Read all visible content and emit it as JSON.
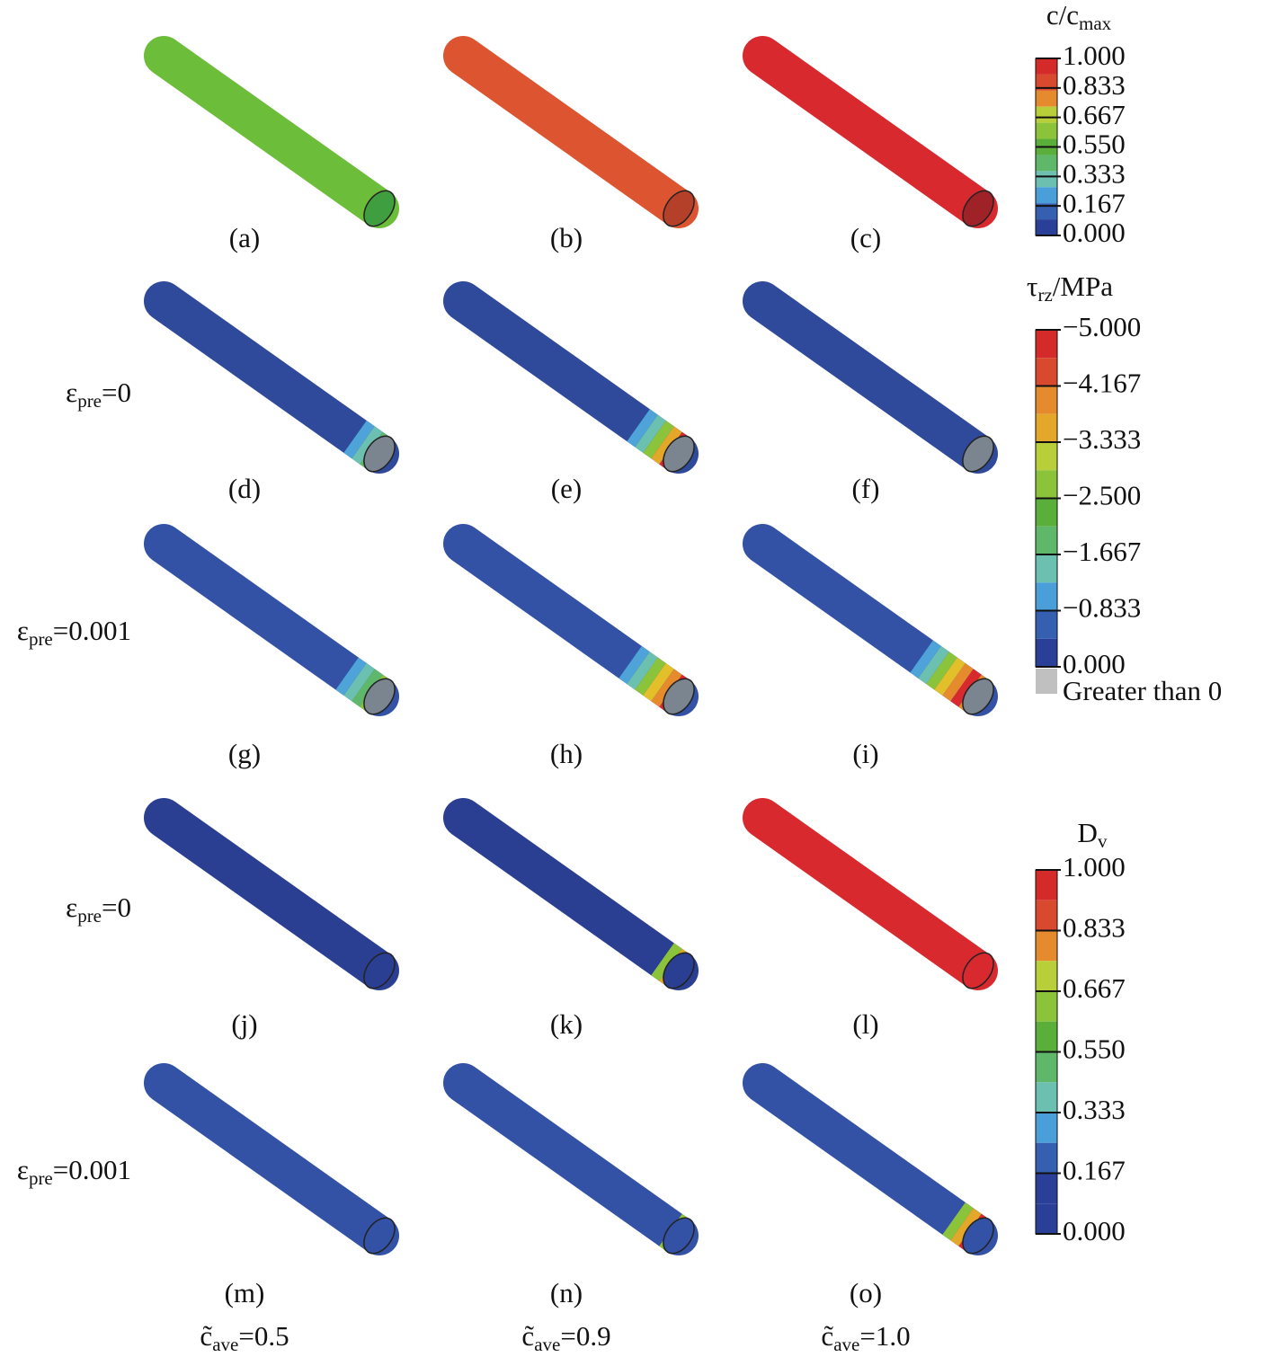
{
  "rows": [
    {
      "panels": [
        {
          "label": "(a)",
          "color": "#6cbd3a",
          "end": "#3f9e3f",
          "bands": []
        },
        {
          "label": "(b)",
          "color": "#dd5530",
          "end": "#b5402a",
          "bands": []
        },
        {
          "label": "(c)",
          "color": "#d82a2e",
          "end": "#9e2228",
          "bands": []
        }
      ]
    },
    {
      "label": [
        {
          "text": "ε"
        },
        {
          "text": "pre",
          "sub": true
        },
        {
          "text": "=0"
        }
      ],
      "panels": [
        {
          "label": "(d)",
          "color": "#2f4a9a",
          "end": "#7a8590",
          "bands": [
            "#4ea3d8",
            "#6cc0b0",
            "#5fb86a"
          ]
        },
        {
          "label": "(e)",
          "color": "#2f4a9a",
          "end": "#7a8590",
          "bands": [
            "#4ea3d8",
            "#6cc0b0",
            "#8bc43a",
            "#e3a82a",
            "#d82a2e"
          ]
        },
        {
          "label": "(f)",
          "color": "#2f4a9a",
          "end": "#7a8590",
          "bands": []
        }
      ]
    },
    {
      "label": [
        {
          "text": "ε"
        },
        {
          "text": "pre",
          "sub": true
        },
        {
          "text": "=0.001"
        }
      ],
      "panels": [
        {
          "label": "(g)",
          "color": "#3352a6",
          "end": "#7a8590",
          "bands": [
            "#4ea3d8",
            "#6cc0b0",
            "#5fb86a",
            "#8bc43a"
          ]
        },
        {
          "label": "(h)",
          "color": "#3352a6",
          "end": "#7a8590",
          "bands": [
            "#4ea3d8",
            "#6cc0b0",
            "#8bc43a",
            "#e3c02a",
            "#e58a2d",
            "#d82a2e"
          ]
        },
        {
          "label": "(i)",
          "color": "#3352a6",
          "end": "#7a8590",
          "bands": [
            "#4ea3d8",
            "#6cc0b0",
            "#8bc43a",
            "#e3c02a",
            "#e58a2d",
            "#d82a2e",
            "#e58a2d"
          ]
        }
      ]
    },
    {
      "label": [
        {
          "text": "ε"
        },
        {
          "text": "pre",
          "sub": true
        },
        {
          "text": "=0"
        }
      ],
      "panels": [
        {
          "label": "(j)",
          "color": "#2a3f92",
          "end": "#2a3f92",
          "bands": []
        },
        {
          "label": "(k)",
          "color": "#2a3f92",
          "end": "#2a3f92",
          "bands": [
            "#8bc43a",
            "#e3a82a"
          ]
        },
        {
          "label": "(l)",
          "color": "#d82a2e",
          "end": "#d82a2e",
          "bands": []
        }
      ]
    },
    {
      "label": [
        {
          "text": "ε"
        },
        {
          "text": "pre",
          "sub": true
        },
        {
          "text": "=0.001"
        }
      ],
      "panels": [
        {
          "label": "(m)",
          "color": "#3352a6",
          "end": "#3352a6",
          "bands": []
        },
        {
          "label": "(n)",
          "color": "#3352a6",
          "end": "#3352a6",
          "bands": [
            "#8bc43a"
          ]
        },
        {
          "label": "(o)",
          "color": "#3352a6",
          "end": "#3352a6",
          "bands": [
            "#8bc43a",
            "#e3a82a",
            "#d82a2e"
          ]
        }
      ]
    }
  ],
  "column_labels": [
    [
      {
        "text": "c̃"
      },
      {
        "text": "ave",
        "sub": true
      },
      {
        "text": "=0.5"
      }
    ],
    [
      {
        "text": "c̃"
      },
      {
        "text": "ave",
        "sub": true
      },
      {
        "text": "=0.9"
      }
    ],
    [
      {
        "text": "c̃"
      },
      {
        "text": "ave",
        "sub": true
      },
      {
        "text": "=1.0"
      }
    ]
  ],
  "legends": [
    {
      "title": [
        {
          "text": "c/c"
        },
        {
          "text": "max",
          "sub": true
        }
      ],
      "ticks": [
        "1.000",
        "0.833",
        "0.667",
        "0.550",
        "0.333",
        "0.167",
        "0.000"
      ],
      "colors": [
        "#d42a2a",
        "#d9492d",
        "#e58a2d",
        "#b9cf3a",
        "#8bc43a",
        "#5aae3a",
        "#5fb86a",
        "#6bc0b0",
        "#4a9fd8",
        "#3560b0",
        "#2a3f98"
      ]
    },
    {
      "title": [
        {
          "text": "τ"
        },
        {
          "text": "rz",
          "sub": true
        },
        {
          "text": "/MPa"
        }
      ],
      "ticks": [
        "−5.000",
        "−4.167",
        "−3.333",
        "−2.500",
        "−1.667",
        "−0.833",
        "0.000"
      ],
      "colors": [
        "#d42a2a",
        "#d9492d",
        "#e58a2d",
        "#e3a82a",
        "#b9cf3a",
        "#8bc43a",
        "#5aae3a",
        "#5fb86a",
        "#6bc0b0",
        "#4a9fd8",
        "#3560b0",
        "#2a3f98"
      ],
      "extra": {
        "label": "Greater than 0",
        "color": "#c0c0c0"
      }
    },
    {
      "title": [
        {
          "text": "D"
        },
        {
          "text": "v",
          "sub": true
        }
      ],
      "ticks": [
        "1.000",
        "0.833",
        "0.667",
        "0.550",
        "0.333",
        "0.167",
        "0.000"
      ],
      "colors": [
        "#d42a2a",
        "#d9492d",
        "#e58a2d",
        "#b9cf3a",
        "#8bc43a",
        "#5aae3a",
        "#5fb86a",
        "#6bc0b0",
        "#4a9fd8",
        "#3560b0",
        "#2a3f98",
        "#2a3f98"
      ]
    }
  ]
}
